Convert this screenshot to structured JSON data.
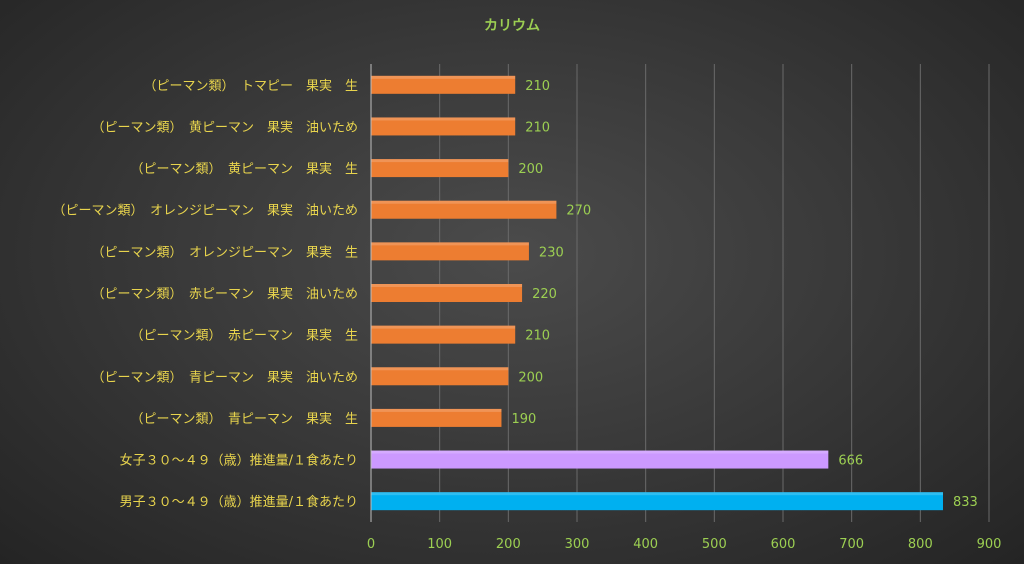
{
  "chart_data": {
    "type": "bar",
    "orientation": "horizontal",
    "title": "カリウム",
    "categories": [
      "（ピーマン類）　トマピー　果実　生",
      "（ピーマン類）　黄ピーマン　果実　油いため",
      "（ピーマン類）　黄ピーマン　果実　生",
      "（ピーマン類）　オレンジピーマン　果実　油いため",
      "（ピーマン類）　オレンジピーマン　果実　生",
      "（ピーマン類）　赤ピーマン　果実　油いため",
      "（ピーマン類）　赤ピーマン　果実　生",
      "（ピーマン類）　青ピーマン　果実　油いため",
      "（ピーマン類）　青ピーマン　果実　生",
      "女子３０～４９（歳）推進量/１食あたり",
      "男子３０～４９（歳）推進量/１食あたり"
    ],
    "values": [
      210,
      210,
      200,
      270,
      230,
      220,
      210,
      200,
      190,
      666,
      833
    ],
    "value_labels": [
      "210",
      "210",
      "200",
      "270",
      "230",
      "220",
      "210",
      "200",
      "190",
      "666",
      "833"
    ],
    "bar_colors": [
      "#ed7d31",
      "#ed7d31",
      "#ed7d31",
      "#ed7d31",
      "#ed7d31",
      "#ed7d31",
      "#ed7d31",
      "#ed7d31",
      "#ed7d31",
      "#cc99ff",
      "#00b0f0"
    ],
    "xlim": [
      0,
      900
    ],
    "xticks": [
      0,
      100,
      200,
      300,
      400,
      500,
      600,
      700,
      800,
      900
    ],
    "xtick_labels": [
      "0",
      "100",
      "200",
      "300",
      "400",
      "500",
      "600",
      "700",
      "800",
      "900"
    ],
    "grid": true,
    "legend": "none",
    "colors": {
      "title": "#9ccf52",
      "category_label": "#e8d44d",
      "value_label": "#9ccf52",
      "tick_label": "#9ccf52",
      "gridline": "#6a6a6a",
      "background": "#3a3a3a"
    }
  }
}
